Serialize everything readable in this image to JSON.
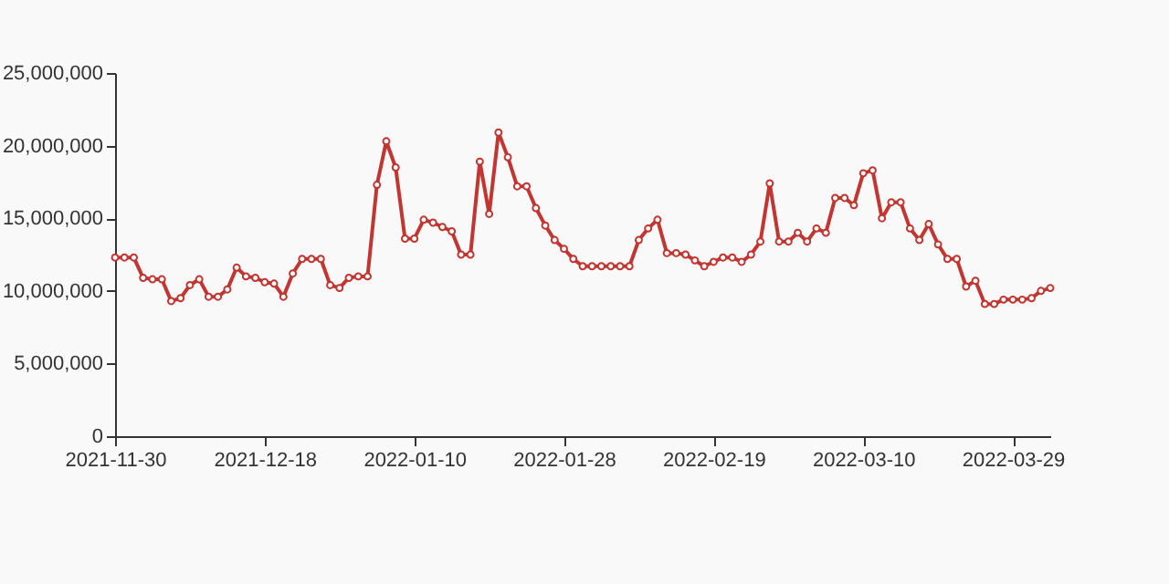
{
  "chart_data": {
    "type": "line",
    "categories": [
      "2021-11-30",
      null,
      null,
      null,
      null,
      null,
      null,
      null,
      null,
      null,
      null,
      null,
      null,
      null,
      null,
      null,
      "2021-12-18",
      null,
      null,
      null,
      null,
      null,
      null,
      null,
      null,
      null,
      null,
      null,
      null,
      null,
      null,
      null,
      "2022-01-10",
      null,
      null,
      null,
      null,
      null,
      null,
      null,
      null,
      null,
      null,
      null,
      null,
      null,
      null,
      null,
      "2022-01-28",
      null,
      null,
      null,
      null,
      null,
      null,
      null,
      null,
      null,
      null,
      null,
      null,
      null,
      null,
      null,
      "2022-02-19",
      null,
      null,
      null,
      null,
      null,
      null,
      null,
      null,
      null,
      null,
      null,
      null,
      null,
      null,
      null,
      "2022-03-10",
      null,
      null,
      null,
      null,
      null,
      null,
      null,
      null,
      null,
      null,
      null,
      null,
      null,
      null,
      null,
      "2022-03-29",
      null,
      null,
      null,
      null
    ],
    "series": [
      {
        "color": "#c23531",
        "values": [
          12300000,
          12300000,
          12300000,
          10900000,
          10800000,
          10800000,
          9300000,
          9500000,
          10400000,
          10800000,
          9600000,
          9600000,
          10100000,
          11600000,
          11000000,
          10900000,
          10600000,
          10500000,
          9600000,
          11200000,
          12200000,
          12200000,
          12200000,
          10400000,
          10200000,
          10900000,
          11000000,
          11000000,
          17300000,
          20300000,
          18500000,
          13600000,
          13600000,
          14900000,
          14700000,
          14400000,
          14100000,
          12500000,
          12500000,
          18900000,
          15300000,
          20900000,
          19200000,
          17200000,
          17200000,
          15700000,
          14500000,
          13500000,
          12900000,
          12200000,
          11700000,
          11700000,
          11700000,
          11700000,
          11700000,
          11700000,
          13500000,
          14300000,
          14900000,
          12600000,
          12600000,
          12500000,
          12100000,
          11700000,
          12000000,
          12300000,
          12300000,
          12000000,
          12500000,
          13400000,
          17400000,
          13400000,
          13400000,
          14000000,
          13400000,
          14300000,
          14000000,
          16400000,
          16400000,
          15900000,
          18100000,
          18300000,
          15000000,
          16100000,
          16100000,
          14300000,
          13500000,
          14600000,
          13200000,
          12200000,
          12200000,
          10300000,
          10700000,
          9100000,
          9100000,
          9400000,
          9400000,
          9400000,
          9500000,
          10000000,
          10200000
        ]
      }
    ],
    "ylim": [
      0,
      25000000
    ],
    "yticks": [
      {
        "value": 0,
        "label": "0"
      },
      {
        "value": 5000000,
        "label": "5,000,000"
      },
      {
        "value": 10000000,
        "label": "10,000,000"
      },
      {
        "value": 15000000,
        "label": "15,000,000"
      },
      {
        "value": 20000000,
        "label": "20,000,000"
      },
      {
        "value": 25000000,
        "label": "25,000,000"
      }
    ],
    "grid": false,
    "marker": "circle",
    "line_style": "solid"
  }
}
